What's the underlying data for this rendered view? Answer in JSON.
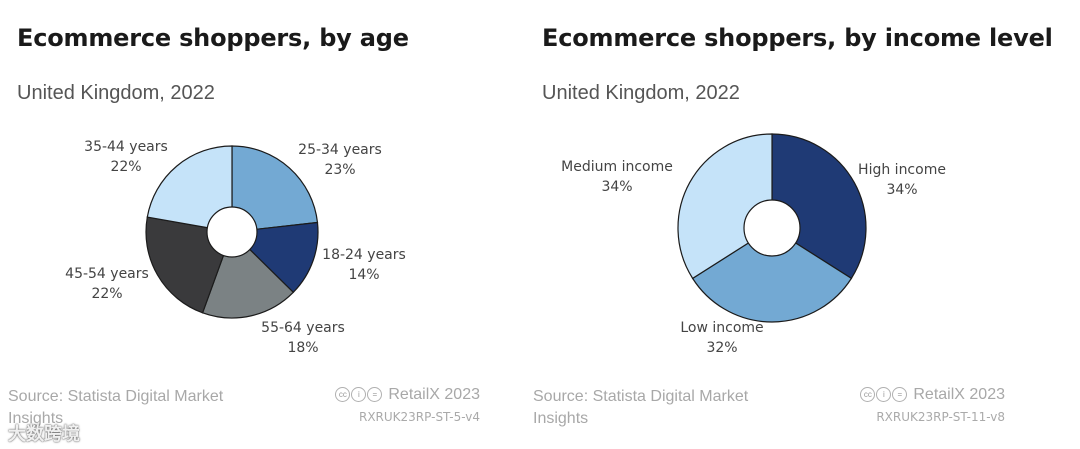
{
  "chart_data": [
    {
      "type": "pie",
      "title": "Ecommerce shoppers, by age",
      "subtitle": "United Kingdom, 2022",
      "slices": [
        {
          "label": "25-34 years",
          "value": 23,
          "value_label": "23%",
          "color": "#73a9d3"
        },
        {
          "label": "18-24 years",
          "value": 14,
          "value_label": "14%",
          "color": "#1f3a75"
        },
        {
          "label": "55-64 years",
          "value": 18,
          "value_label": "18%",
          "color": "#7b8284"
        },
        {
          "label": "45-54 years",
          "value": 22,
          "value_label": "22%",
          "color": "#3a3a3c"
        },
        {
          "label": "35-44 years",
          "value": 22,
          "value_label": "22%",
          "color": "#c5e3f9"
        }
      ],
      "source": "Source: Statista Digital Market Insights",
      "credit": "RetailX 2023",
      "code": "RXRUK23RP-ST-5-v4"
    },
    {
      "type": "pie",
      "title": "Ecommerce shoppers, by income level",
      "subtitle": "United Kingdom, 2022",
      "slices": [
        {
          "label": "High income",
          "value": 34,
          "value_label": "34%",
          "color": "#1f3a75"
        },
        {
          "label": "Low income",
          "value": 32,
          "value_label": "32%",
          "color": "#73a9d3"
        },
        {
          "label": "Medium income",
          "value": 34,
          "value_label": "34%",
          "color": "#c5e3f9"
        }
      ],
      "source": "Source: Statista Digital Market Insights",
      "credit": "RetailX 2023",
      "code": "RXRUK23RP-ST-11-v8"
    }
  ],
  "license_icons": [
    "cc-icon",
    "by-icon",
    "equals-icon"
  ],
  "watermark": "大数跨境"
}
